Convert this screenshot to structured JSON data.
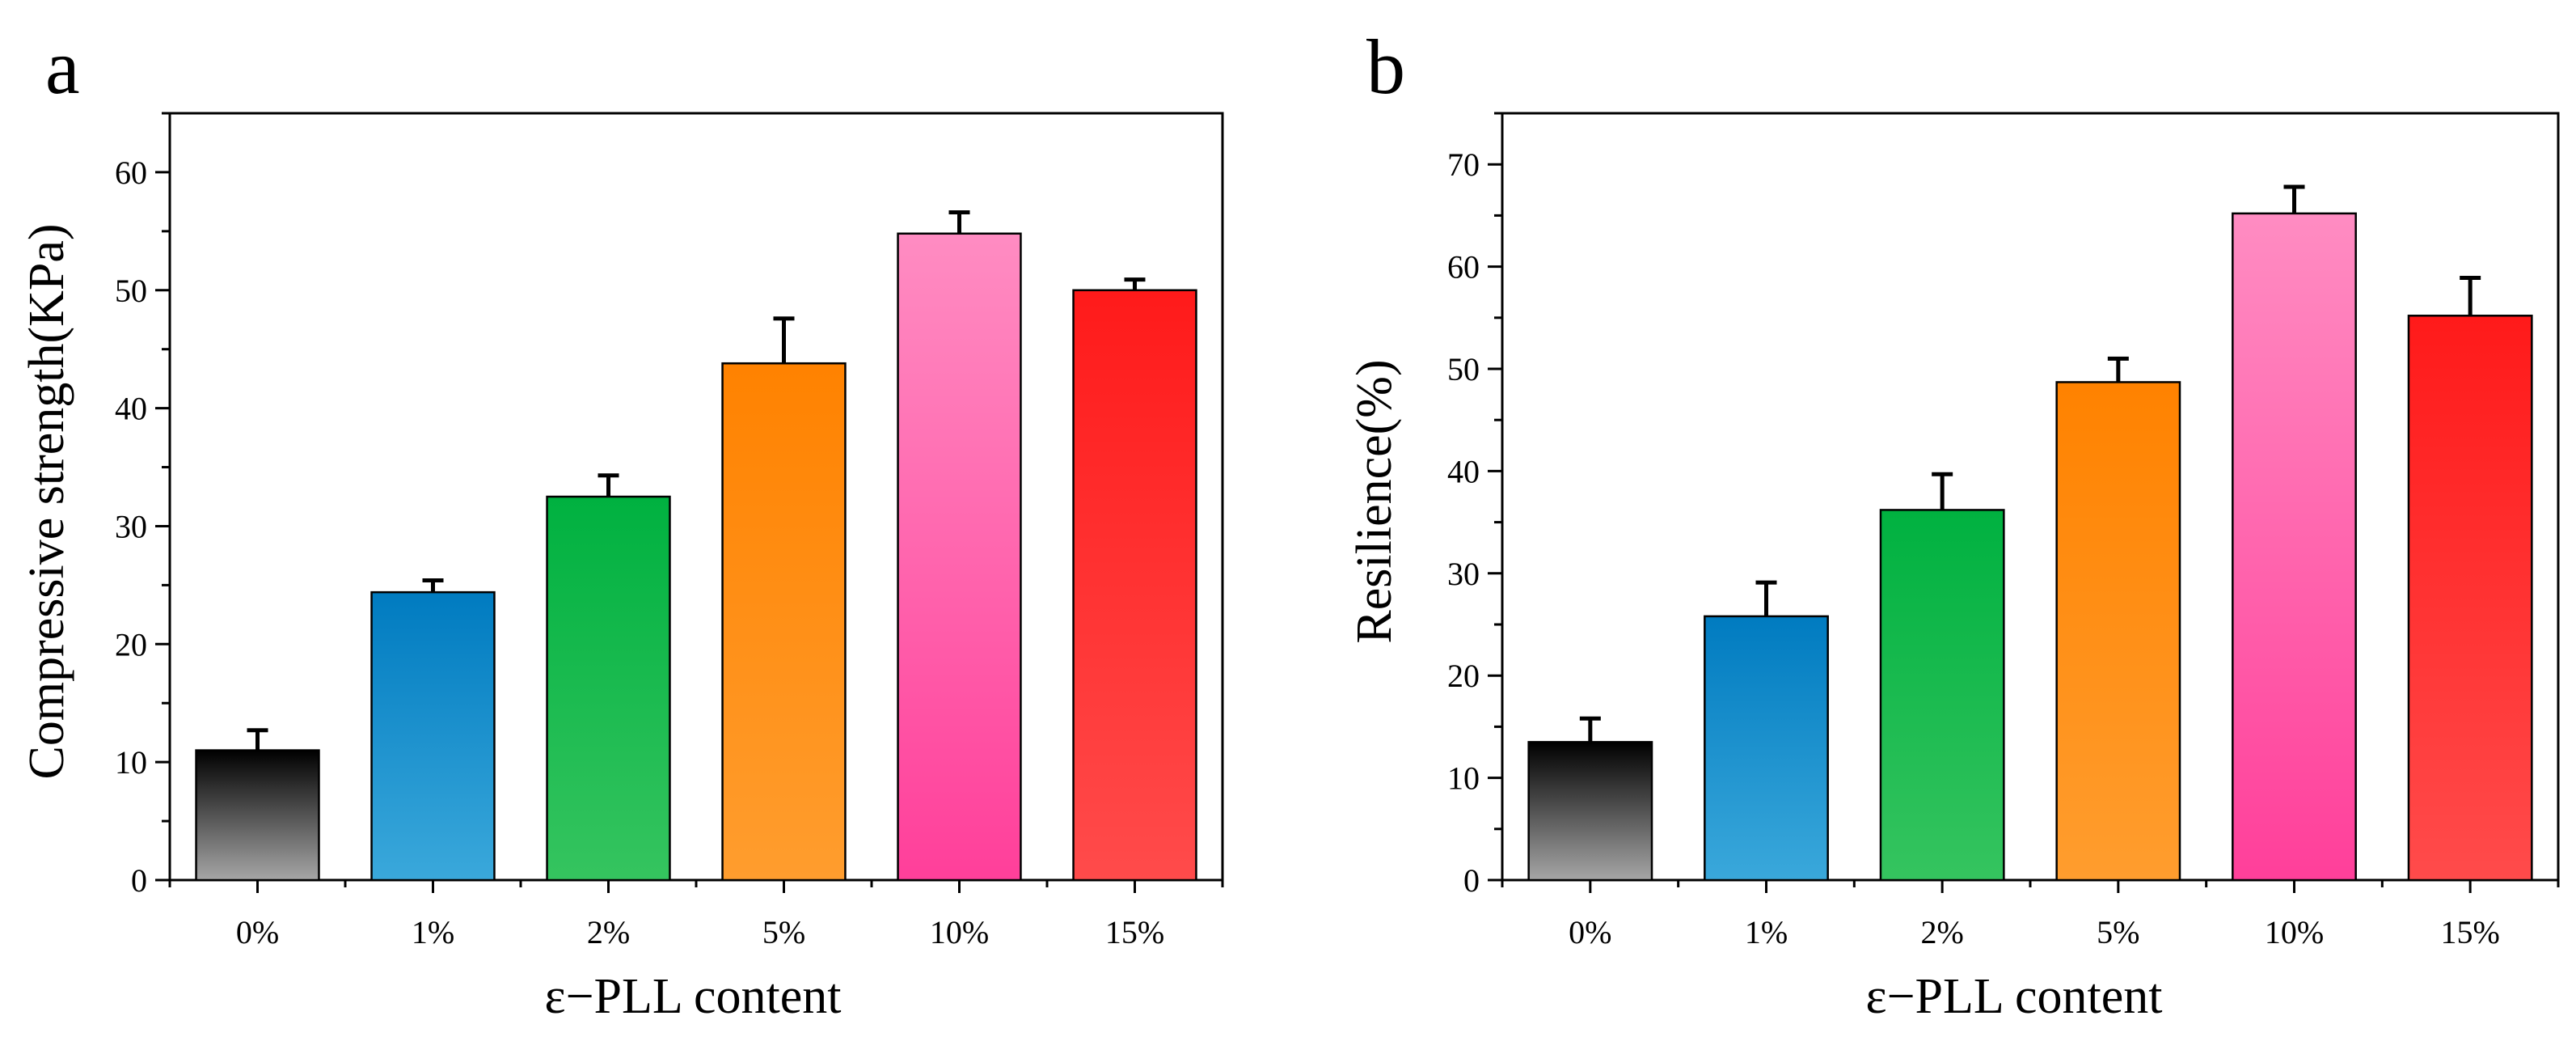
{
  "figure": {
    "panels": [
      {
        "letter": "a",
        "chart_data": {
          "type": "bar",
          "categories": [
            "0%",
            "1%",
            "2%",
            "5%",
            "10%",
            "15%"
          ],
          "values": [
            11.0,
            24.4,
            32.5,
            43.8,
            54.8,
            50.0
          ],
          "errors": [
            1.7,
            1.0,
            1.8,
            3.8,
            1.8,
            0.9
          ],
          "xlabel": "ε−PLL content",
          "ylabel": "Compressive strength(KPa)",
          "ylim": [
            0,
            65
          ],
          "yticks": [
            0,
            10,
            20,
            30,
            40,
            50,
            60
          ],
          "grid": false,
          "bar_colors": [
            {
              "top": "#000000",
              "bottom": "#a6a6a6"
            },
            {
              "top": "#007bc0",
              "bottom": "#3aa8db"
            },
            {
              "top": "#00b140",
              "bottom": "#35c45f"
            },
            {
              "top": "#ff8200",
              "bottom": "#ff9d2e"
            },
            {
              "top": "#ff8cc2",
              "bottom": "#ff3f9a"
            },
            {
              "top": "#ff1a1a",
              "bottom": "#ff4b4b"
            }
          ]
        }
      },
      {
        "letter": "b",
        "chart_data": {
          "type": "bar",
          "categories": [
            "0%",
            "1%",
            "2%",
            "5%",
            "10%",
            "15%"
          ],
          "values": [
            13.5,
            25.8,
            36.2,
            48.7,
            65.2,
            55.2
          ],
          "errors": [
            2.3,
            3.3,
            3.5,
            2.3,
            2.6,
            3.7
          ],
          "xlabel": "ε−PLL content",
          "ylabel": "Resilience(%)",
          "ylim": [
            0,
            75
          ],
          "yticks": [
            0,
            10,
            20,
            30,
            40,
            50,
            60,
            70
          ],
          "grid": false,
          "bar_colors": [
            {
              "top": "#000000",
              "bottom": "#a6a6a6"
            },
            {
              "top": "#007bc0",
              "bottom": "#3aa8db"
            },
            {
              "top": "#00b140",
              "bottom": "#35c45f"
            },
            {
              "top": "#ff8200",
              "bottom": "#ff9d2e"
            },
            {
              "top": "#ff8cc2",
              "bottom": "#ff3f9a"
            },
            {
              "top": "#ff1a1a",
              "bottom": "#ff4b4b"
            }
          ]
        }
      }
    ]
  }
}
